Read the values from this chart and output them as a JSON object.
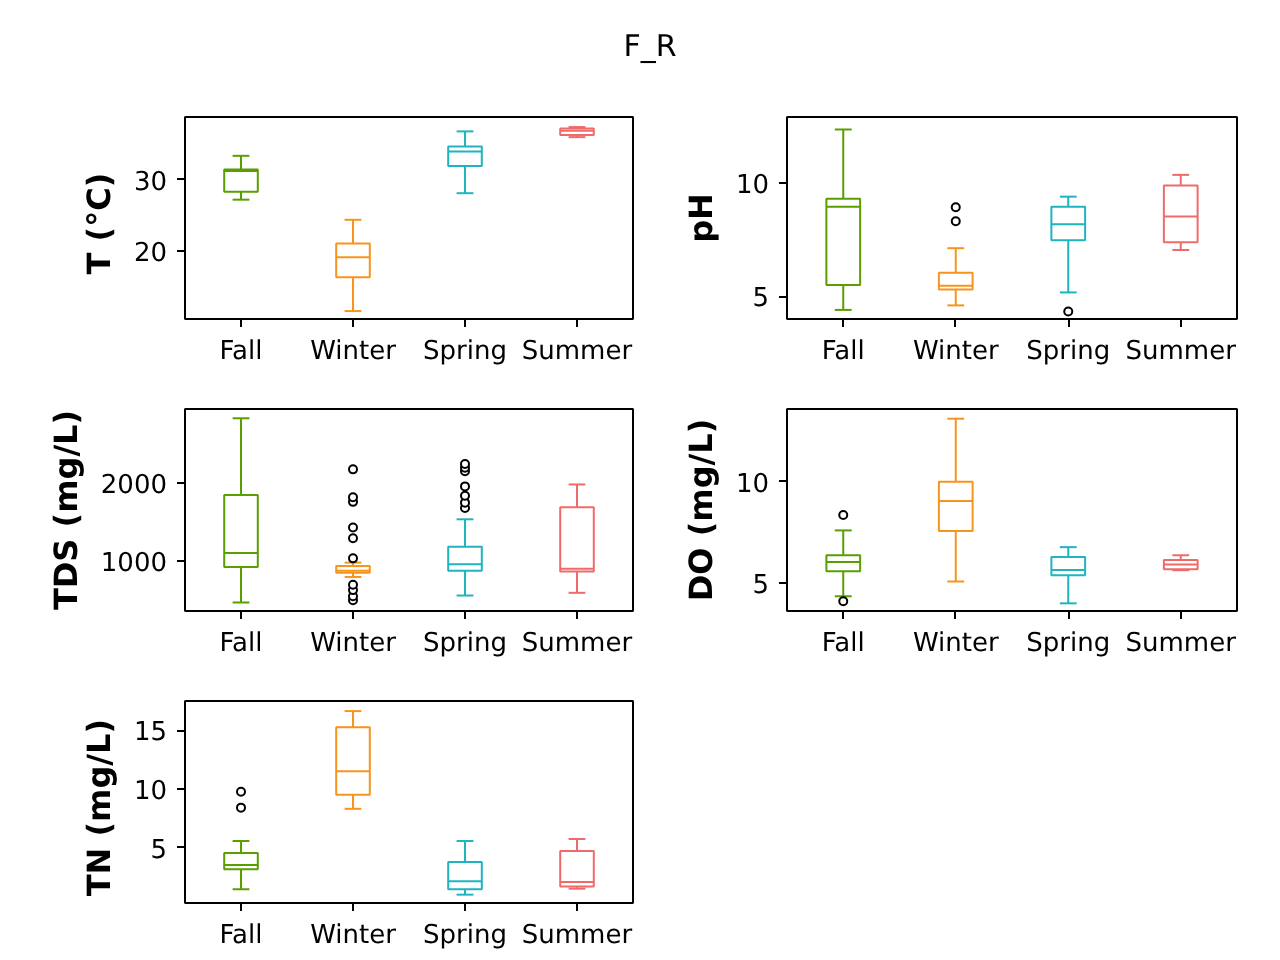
{
  "chart_data": [
    {
      "type": "box",
      "title": "F_R",
      "ylabel": "T  (°C)",
      "categories": [
        "Fall",
        "Winter",
        "Spring",
        "Summer"
      ],
      "colors": [
        "#5a9e00",
        "#f7941d",
        "#1fb4bf",
        "#ef6b6b"
      ],
      "marker": "circle",
      "ylim": [
        10.6,
        38.7
      ],
      "yticks": [
        20,
        30
      ],
      "boxes": [
        {
          "low": 27.2,
          "q1": 28.3,
          "median": 31.2,
          "q3": 31.4,
          "high": 33.3
        },
        {
          "low": 11.7,
          "q1": 16.4,
          "median": 19.2,
          "q3": 21.1,
          "high": 24.4
        },
        {
          "low": 28.1,
          "q1": 31.9,
          "median": 33.9,
          "q3": 34.6,
          "high": 36.7
        },
        {
          "low": 35.9,
          "q1": 36.2,
          "median": 36.8,
          "q3": 37.1,
          "high": 37.3
        }
      ]
    },
    {
      "type": "box",
      "ylabel": "pH",
      "categories": [
        "Fall",
        "Winter",
        "Spring",
        "Summer"
      ],
      "colors": [
        "#5a9e00",
        "#f7941d",
        "#1fb4bf",
        "#ef6b6b"
      ],
      "marker": "circle",
      "ylim": [
        4.0,
        12.9
      ],
      "yticks": [
        5,
        10
      ],
      "boxes": [
        {
          "low": 4.4,
          "q1": 5.5,
          "median": 8.95,
          "q3": 9.3,
          "high": 12.35
        },
        {
          "low": 4.6,
          "q1": 5.3,
          "median": 5.47,
          "q3": 6.04,
          "high": 7.12,
          "outliers": [
            8.31,
            8.92
          ]
        },
        {
          "low": 5.17,
          "q1": 7.47,
          "median": 8.17,
          "q3": 8.95,
          "high": 9.39,
          "outliers": [
            4.33
          ]
        },
        {
          "low": 7.04,
          "q1": 7.38,
          "median": 8.52,
          "q3": 9.88,
          "high": 10.35
        }
      ]
    },
    {
      "type": "box",
      "ylabel": "TDS (mg/L)",
      "categories": [
        "Fall",
        "Winter",
        "Spring",
        "Summer"
      ],
      "colors": [
        "#5a9e00",
        "#f7941d",
        "#1fb4bf",
        "#ef6b6b"
      ],
      "marker": "circle",
      "ylim": [
        350,
        2960
      ],
      "yticks": [
        1000,
        2000
      ],
      "boxes": [
        {
          "low": 460,
          "q1": 920,
          "median": 1100,
          "q3": 1850,
          "high": 2840
        },
        {
          "low": 790,
          "q1": 845,
          "median": 870,
          "q3": 930,
          "high": 975,
          "outliers": [
            490,
            540,
            620,
            690,
            1030,
            1290,
            1430,
            1760,
            1820,
            2180
          ]
        },
        {
          "low": 550,
          "q1": 870,
          "median": 955,
          "q3": 1180,
          "high": 1535,
          "outliers": [
            1680,
            1750,
            1840,
            1960,
            2155,
            2200,
            2250
          ]
        },
        {
          "low": 585,
          "q1": 860,
          "median": 895,
          "q3": 1690,
          "high": 1985
        }
      ]
    },
    {
      "type": "box",
      "ylabel": "DO (mg/L)",
      "categories": [
        "Fall",
        "Winter",
        "Spring",
        "Summer"
      ],
      "colors": [
        "#5a9e00",
        "#f7941d",
        "#1fb4bf",
        "#ef6b6b"
      ],
      "marker": "circle",
      "ylim": [
        3.6,
        13.6
      ],
      "yticks": [
        5,
        10
      ],
      "boxes": [
        {
          "low": 4.33,
          "q1": 5.57,
          "median": 6.03,
          "q3": 6.36,
          "high": 7.59,
          "outliers": [
            4.08,
            8.35
          ]
        },
        {
          "low": 5.06,
          "q1": 7.56,
          "median": 9.05,
          "q3": 10.0,
          "high": 13.12
        },
        {
          "low": 3.98,
          "q1": 5.37,
          "median": 5.63,
          "q3": 6.27,
          "high": 6.76
        },
        {
          "low": 5.62,
          "q1": 5.67,
          "median": 5.9,
          "q3": 6.13,
          "high": 6.36
        }
      ]
    },
    {
      "type": "box",
      "ylabel": "TN  (mg/L)",
      "categories": [
        "Fall",
        "Winter",
        "Spring",
        "Summer"
      ],
      "colors": [
        "#5a9e00",
        "#f7941d",
        "#1fb4bf",
        "#ef6b6b"
      ],
      "marker": "circle",
      "ylim": [
        0.3,
        17.5
      ],
      "yticks": [
        5,
        10,
        15
      ],
      "boxes": [
        {
          "low": 1.47,
          "q1": 3.18,
          "median": 3.53,
          "q3": 4.55,
          "high": 5.58,
          "outliers": [
            8.42,
            9.78
          ]
        },
        {
          "low": 8.32,
          "q1": 9.52,
          "median": 11.51,
          "q3": 15.27,
          "high": 16.64
        },
        {
          "low": 1.01,
          "q1": 1.47,
          "median": 2.16,
          "q3": 3.8,
          "high": 5.58
        },
        {
          "low": 1.52,
          "q1": 1.7,
          "median": 2.09,
          "q3": 4.73,
          "high": 5.75
        }
      ]
    }
  ]
}
